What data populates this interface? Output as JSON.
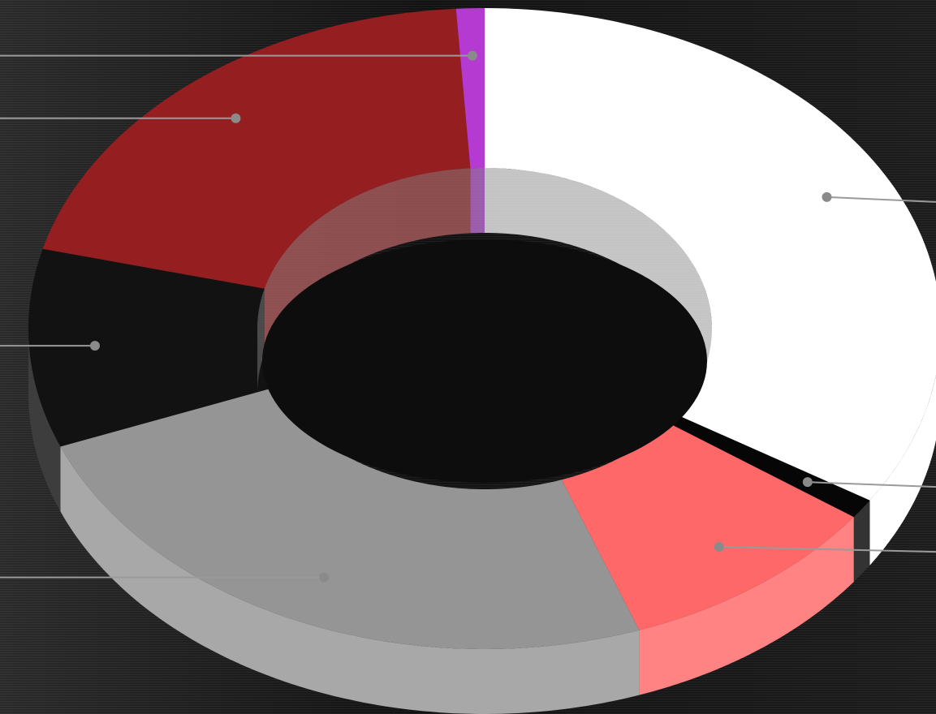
{
  "chart_data": {
    "type": "pie",
    "style": "3d-donut",
    "legend": "none",
    "slices": [
      {
        "value": 34.0,
        "color": "#ffffff"
      },
      {
        "value": 1.0,
        "color": "#060606"
      },
      {
        "value": 9.5,
        "color": "#ff6868"
      },
      {
        "value": 24.5,
        "color": "#959595"
      },
      {
        "value": 10.0,
        "color": "#121212"
      },
      {
        "value": 20.0,
        "color": "#951e20"
      },
      {
        "value": 1.0,
        "color": "#b43ad2"
      }
    ]
  }
}
